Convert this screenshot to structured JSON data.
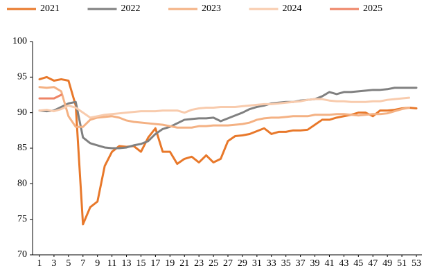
{
  "chart_data": {
    "type": "line",
    "x": [
      1,
      2,
      3,
      4,
      5,
      6,
      7,
      8,
      9,
      10,
      11,
      12,
      13,
      14,
      15,
      16,
      17,
      18,
      19,
      20,
      21,
      22,
      23,
      24,
      25,
      26,
      27,
      28,
      29,
      30,
      31,
      32,
      33,
      34,
      35,
      36,
      37,
      38,
      39,
      40,
      41,
      42,
      43,
      44,
      45,
      46,
      47,
      48,
      49,
      50,
      51,
      52,
      53
    ],
    "xlim": [
      1,
      53
    ],
    "xticks": [
      1,
      3,
      5,
      7,
      9,
      11,
      13,
      15,
      17,
      19,
      21,
      23,
      25,
      27,
      29,
      31,
      33,
      35,
      37,
      39,
      41,
      43,
      45,
      47,
      49,
      51,
      53
    ],
    "ylim": [
      70,
      100
    ],
    "yticks": [
      70,
      75,
      80,
      85,
      90,
      95,
      100
    ],
    "legend": "top",
    "series": [
      {
        "name": "2021",
        "color": "#e8782a",
        "values": [
          94.7,
          95.0,
          94.5,
          94.7,
          94.5,
          91.0,
          74.3,
          76.7,
          77.5,
          82.5,
          84.5,
          85.3,
          85.2,
          85.3,
          84.5,
          86.5,
          87.8,
          84.5,
          84.5,
          82.8,
          83.5,
          83.8,
          83.0,
          84.0,
          83.0,
          83.5,
          86.0,
          86.7,
          86.8,
          87.0,
          87.4,
          87.8,
          87.0,
          87.3,
          87.3,
          87.5,
          87.5,
          87.6,
          88.3,
          89.0,
          89.0,
          89.3,
          89.5,
          89.7,
          90.0,
          90.0,
          89.5,
          90.3,
          90.3,
          90.4,
          90.6,
          90.7,
          90.6
        ]
      },
      {
        "name": "2022",
        "color": "#808080",
        "values": [
          90.3,
          90.2,
          90.3,
          90.8,
          91.3,
          91.5,
          86.5,
          85.7,
          85.4,
          85.1,
          85.0,
          85.0,
          85.1,
          85.4,
          85.6,
          86.0,
          87.0,
          87.7,
          88.0,
          88.5,
          89.0,
          89.1,
          89.2,
          89.2,
          89.3,
          88.8,
          89.2,
          89.6,
          90.0,
          90.5,
          90.8,
          91.0,
          91.3,
          91.4,
          91.5,
          91.5,
          91.7,
          91.8,
          91.9,
          92.3,
          92.9,
          92.6,
          92.9,
          92.9,
          93.0,
          93.1,
          93.2,
          93.2,
          93.3,
          93.5,
          93.5,
          93.5,
          93.5
        ]
      },
      {
        "name": "2023",
        "color": "#f4b183",
        "values": [
          93.6,
          93.5,
          93.6,
          93.0,
          89.5,
          88.0,
          88.0,
          89.0,
          89.3,
          89.4,
          89.5,
          89.3,
          88.9,
          88.7,
          88.6,
          88.5,
          88.4,
          88.3,
          88.1,
          87.9,
          87.9,
          87.9,
          88.1,
          88.1,
          88.2,
          88.2,
          88.2,
          88.3,
          88.4,
          88.6,
          89.0,
          89.2,
          89.3,
          89.3,
          89.4,
          89.5,
          89.5,
          89.5,
          89.7,
          89.7,
          89.7,
          89.8,
          89.8,
          89.7,
          89.6,
          89.7,
          89.8,
          89.8,
          89.9,
          90.2,
          90.5,
          90.7,
          null
        ]
      },
      {
        "name": "2024",
        "color": "#f8cbad",
        "values": [
          90.3,
          90.4,
          90.2,
          90.5,
          91.0,
          90.7,
          90.0,
          89.3,
          89.5,
          89.7,
          89.8,
          89.9,
          90.0,
          90.1,
          90.2,
          90.2,
          90.2,
          90.3,
          90.3,
          90.3,
          90.0,
          90.4,
          90.6,
          90.7,
          90.7,
          90.8,
          90.8,
          90.8,
          90.9,
          91.0,
          91.1,
          91.2,
          91.2,
          91.3,
          91.4,
          91.5,
          91.6,
          91.8,
          91.9,
          91.9,
          91.7,
          91.6,
          91.6,
          91.5,
          91.5,
          91.5,
          91.6,
          91.6,
          91.8,
          91.9,
          92.0,
          92.1,
          null
        ]
      },
      {
        "name": "2025",
        "color": "#ee8466",
        "values": [
          92.0,
          92.0,
          92.0,
          92.5,
          null,
          null,
          null,
          null,
          null,
          null,
          null,
          null,
          null,
          null,
          null,
          null,
          null,
          null,
          null,
          null,
          null,
          null,
          null,
          null,
          null,
          null,
          null,
          null,
          null,
          null,
          null,
          null,
          null,
          null,
          null,
          null,
          null,
          null,
          null,
          null,
          null,
          null,
          null,
          null,
          null,
          null,
          null,
          null,
          null,
          null,
          null,
          null,
          null
        ]
      }
    ]
  }
}
